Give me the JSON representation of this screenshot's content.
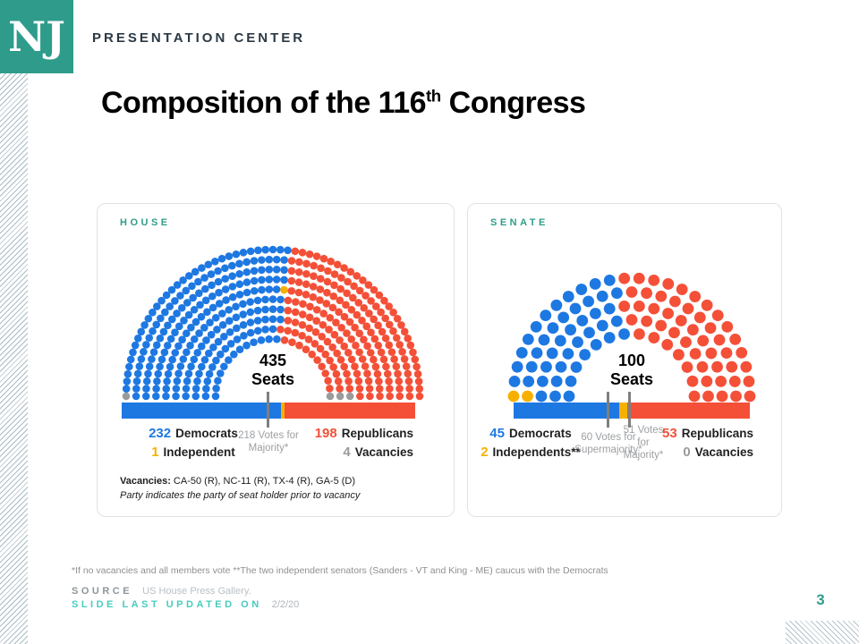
{
  "header": {
    "logo": "NJ",
    "brand": "PRESENTATION CENTER"
  },
  "title": {
    "text": "Composition of the 116",
    "sup": "th",
    "tail": " Congress"
  },
  "colors": {
    "teal": "#2F9C8B",
    "teal_light": "#48CBBE",
    "democrat": "#1E78E2",
    "independent": "#F7B000",
    "republican": "#F45038",
    "vacancy": "#9B9B9B"
  },
  "house": {
    "label": "HOUSE",
    "seats_value": "435",
    "seats_unit": "Seats",
    "stats": {
      "dem_value": "232",
      "dem_label": "Democrats",
      "ind_value": "1",
      "ind_label": "Independent",
      "rep_value": "198",
      "rep_label": "Republicans",
      "vac_value": "4",
      "vac_label": "Vacancies",
      "majority_line1": "218 Votes for",
      "majority_line2": "Majority*"
    },
    "note_bold": "Vacancies:",
    "note_text": " CA-50 (R), NC-11 (R), TX-4 (R), GA-5 (D)",
    "note_italic": "Party indicates the party of seat holder prior to vacancy"
  },
  "senate": {
    "label": "SENATE",
    "seats_value": "100",
    "seats_unit": "Seats",
    "stats": {
      "dem_value": "45",
      "dem_label": "Democrats",
      "ind_value": "2",
      "ind_label": "Independents**",
      "rep_value": "53",
      "rep_label": "Republicans",
      "vac_value": "0",
      "vac_label": "Vacancies",
      "super_line1": "60 Votes for",
      "super_line2": "Supermajority*",
      "majority_line1": "51 Votes",
      "majority_line2": "for",
      "majority_line3": "Majority*"
    }
  },
  "footnote": "*If no vacancies and all members vote  **The two independent senators (Sanders - VT and King - ME) caucus with the Democrats",
  "source_label": "SOURCE",
  "source_text": "US House Press Gallery.",
  "updated_label": "SLIDE LAST UPDATED ON",
  "updated_date": "2/2/20",
  "page_number": "3",
  "chart_data": [
    {
      "type": "parliament",
      "chamber": "House",
      "title": "HOUSE",
      "total_seats": 435,
      "rings": 10,
      "groups": [
        {
          "name": "Democrats",
          "seats": 232,
          "color_key": "democrat"
        },
        {
          "name": "Independent",
          "seats": 1,
          "color_key": "independent"
        },
        {
          "name": "Republicans",
          "seats": 198,
          "color_key": "republican"
        },
        {
          "name": "Vacancies",
          "seats": 4,
          "color_key": "vacancy"
        }
      ],
      "seat_sequence": [
        {
          "group": "Vacancies",
          "count": 1
        },
        {
          "group": "Democrats",
          "count": 232
        },
        {
          "group": "Independent",
          "count": 1
        },
        {
          "group": "Republicans",
          "count": 198
        },
        {
          "group": "Vacancies",
          "count": 3
        }
      ],
      "bar_segments": [
        {
          "color_key": "democrat",
          "pct": 54.3
        },
        {
          "color_key": "independent",
          "pct": 1.2
        },
        {
          "color_key": "republican",
          "pct": 44.5
        }
      ],
      "markers": [
        {
          "votes": 218,
          "label": "218 Votes for Majority*"
        }
      ],
      "vacancy_details": "CA-50 (R), NC-11 (R), TX-4 (R), GA-5 (D)"
    },
    {
      "type": "parliament",
      "chamber": "Senate",
      "title": "SENATE",
      "total_seats": 100,
      "rings": 5,
      "groups": [
        {
          "name": "Democrats",
          "seats": 45,
          "color_key": "democrat"
        },
        {
          "name": "Independents",
          "seats": 2,
          "color_key": "independent"
        },
        {
          "name": "Republicans",
          "seats": 53,
          "color_key": "republican"
        },
        {
          "name": "Vacancies",
          "seats": 0,
          "color_key": "vacancy"
        }
      ],
      "seat_sequence": [
        {
          "group": "Independents",
          "count": 2
        },
        {
          "group": "Democrats",
          "count": 45
        },
        {
          "group": "Republicans",
          "count": 53
        }
      ],
      "bar_segments": [
        {
          "color_key": "democrat",
          "pct": 44.6
        },
        {
          "color_key": "independent",
          "pct": 3.4
        },
        {
          "color_key": "republican",
          "pct": 52.0
        }
      ],
      "markers": [
        {
          "votes": 60,
          "label": "60 Votes for Supermajority*"
        },
        {
          "votes": 51,
          "label": "51 Votes for Majority*"
        }
      ]
    }
  ]
}
